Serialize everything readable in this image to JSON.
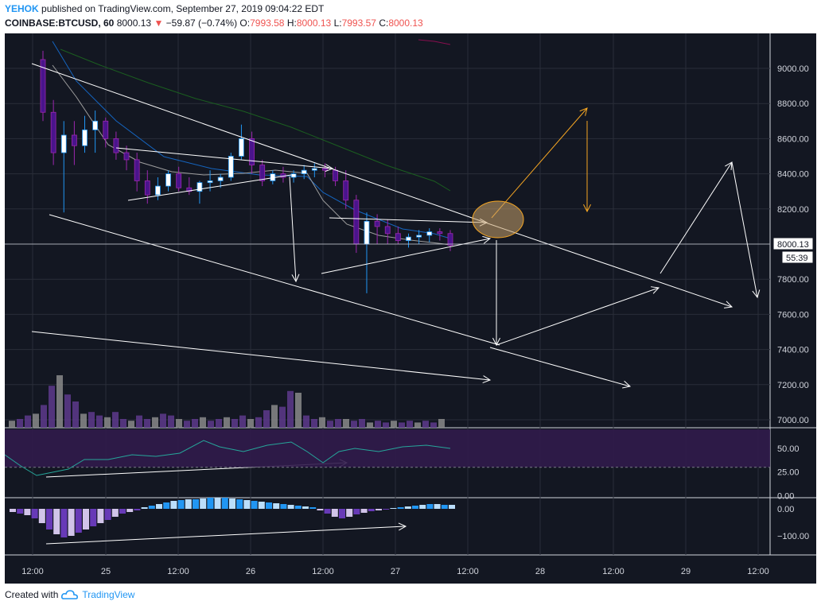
{
  "header": {
    "author": "YEHOK",
    "published": "published on TradingView.com, September 27, 2019 09:04:22 EDT",
    "symbol": "COINBASE:BTCUSD, 60",
    "last": "8000.13",
    "change": "−59.87 (−0.74%)",
    "o_label": "O:",
    "o_value": "7993.58",
    "h_label": "H:",
    "h_value": "8000.13",
    "l_label": "L:",
    "l_value": "7993.57",
    "c_label": "C:",
    "c_value": "8000.13"
  },
  "footer": {
    "created_with": "Created with",
    "brand": "TradingView"
  },
  "colors": {
    "background": "#131722",
    "grid": "#2a2e39",
    "axis_text": "#d1d4dc",
    "candle_up_body": "#ffffff",
    "candle_up_blue": "#2196f3",
    "candle_down_body": "#4a148c",
    "wick": "#9c27b0",
    "drawing": "#ffffff",
    "arrow_orange": "#f5a623",
    "ellipse_fill": "#c8a26b",
    "rsi_band": "#311b4b",
    "rsi_line": "#26a69a",
    "macd_pos": "#2196f3",
    "macd_pos_light": "#bbdefb",
    "macd_neg": "#673ab7",
    "macd_neg_light": "#d1c4e9"
  },
  "chart_data": {
    "type": "candlestick",
    "symbol": "COINBASE:BTCUSD",
    "interval": "60",
    "x_tick_labels": [
      "12:00",
      "25",
      "12:00",
      "26",
      "12:00",
      "27",
      "12:00",
      "28",
      "12:00",
      "29",
      "12:00"
    ],
    "price_axis": {
      "ticks": [
        "9000.00",
        "8800.00",
        "8600.00",
        "8400.00",
        "8200.00",
        "8000.00",
        "7800.00",
        "7600.00",
        "7400.00",
        "7200.00",
        "7000.00"
      ],
      "tick_values": [
        9000,
        8800,
        8600,
        8400,
        8200,
        8000,
        7800,
        7600,
        7400,
        7200,
        7000
      ],
      "ylim": [
        6950,
        9200
      ]
    },
    "last_price_label": "8000.13",
    "countdown_label": "55:39",
    "candles_ohlc_approx": [
      [
        9050,
        9100,
        8700,
        8750
      ],
      [
        8750,
        8820,
        8450,
        8520
      ],
      [
        8520,
        8700,
        8180,
        8620
      ],
      [
        8620,
        8700,
        8450,
        8560
      ],
      [
        8560,
        8730,
        8520,
        8650
      ],
      [
        8650,
        8760,
        8520,
        8700
      ],
      [
        8700,
        8720,
        8550,
        8600
      ],
      [
        8600,
        8640,
        8480,
        8520
      ],
      [
        8520,
        8560,
        8420,
        8480
      ],
      [
        8480,
        8520,
        8300,
        8360
      ],
      [
        8360,
        8420,
        8230,
        8280
      ],
      [
        8280,
        8380,
        8250,
        8330
      ],
      [
        8330,
        8420,
        8300,
        8400
      ],
      [
        8400,
        8440,
        8300,
        8320
      ],
      [
        8320,
        8380,
        8280,
        8300
      ],
      [
        8300,
        8360,
        8230,
        8350
      ],
      [
        8350,
        8420,
        8300,
        8360
      ],
      [
        8360,
        8400,
        8320,
        8380
      ],
      [
        8380,
        8520,
        8360,
        8500
      ],
      [
        8500,
        8680,
        8480,
        8600
      ],
      [
        8600,
        8640,
        8400,
        8450
      ],
      [
        8450,
        8480,
        8330,
        8360
      ],
      [
        8360,
        8420,
        8340,
        8400
      ],
      [
        8400,
        8440,
        8350,
        8380
      ],
      [
        8380,
        8420,
        8350,
        8400
      ],
      [
        8400,
        8450,
        8370,
        8420
      ],
      [
        8420,
        8460,
        8380,
        8430
      ],
      [
        8430,
        8460,
        8380,
        8420
      ],
      [
        8420,
        8440,
        8330,
        8360
      ],
      [
        8360,
        8420,
        8200,
        8250
      ],
      [
        8250,
        8280,
        7950,
        8000
      ],
      [
        8000,
        8180,
        7720,
        8130
      ],
      [
        8130,
        8170,
        8000,
        8100
      ],
      [
        8100,
        8140,
        8000,
        8060
      ],
      [
        8060,
        8100,
        8000,
        8020
      ],
      [
        8020,
        8060,
        7980,
        8040
      ],
      [
        8040,
        8080,
        8000,
        8050
      ],
      [
        8050,
        8090,
        8010,
        8070
      ],
      [
        8070,
        8090,
        8020,
        8060
      ],
      [
        8060,
        8080,
        7960,
        7993
      ]
    ],
    "rsi": {
      "ticks": [
        "50.00",
        "25.00",
        "0.00"
      ],
      "tick_values": [
        50,
        25,
        0
      ],
      "band": [
        30,
        70
      ]
    },
    "macd": {
      "ticks": [
        "0.00",
        "−100.00"
      ],
      "tick_values": [
        0,
        -100
      ]
    }
  }
}
